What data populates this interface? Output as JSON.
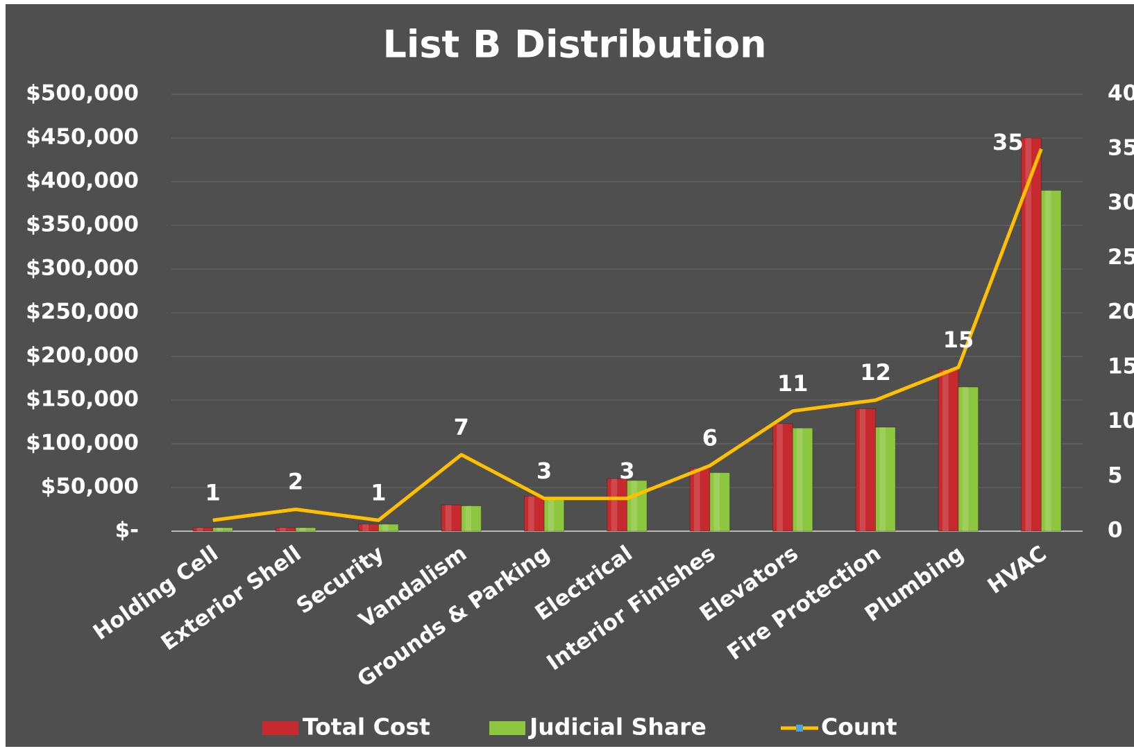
{
  "chart_data": {
    "type": "bar_line",
    "title": "List B Distribution",
    "categories": [
      "Holding Cell",
      "Exterior Shell",
      "Security",
      "Vandalism",
      "Grounds & Parking",
      "Electrical",
      "Interior Finishes",
      "Elevators",
      "Fire Protection",
      "Plumbing",
      "HVAC"
    ],
    "series": [
      {
        "name": "Total Cost",
        "color": "#c62a2e",
        "values": [
          4000,
          4000,
          8000,
          30000,
          40000,
          60000,
          72000,
          123000,
          140000,
          185000,
          450000
        ]
      },
      {
        "name": "Judicial Share",
        "color": "#8dc63f",
        "values": [
          4000,
          4000,
          8000,
          29000,
          38000,
          58000,
          67000,
          118000,
          119000,
          165000,
          390000
        ]
      },
      {
        "name": "Count",
        "color": "#ffc000",
        "axis": "y2",
        "values": [
          1,
          2,
          1,
          7,
          3,
          3,
          6,
          11,
          12,
          15,
          35
        ]
      }
    ],
    "ylim": [
      0,
      500000
    ],
    "yticks": [
      {
        "value": 0,
        "label": "$-"
      },
      {
        "value": 50000,
        "label": "$50,000"
      },
      {
        "value": 100000,
        "label": "$100,000"
      },
      {
        "value": 150000,
        "label": "$150,000"
      },
      {
        "value": 200000,
        "label": "$200,000"
      },
      {
        "value": 250000,
        "label": "$250,000"
      },
      {
        "value": 300000,
        "label": "$300,000"
      },
      {
        "value": 350000,
        "label": "$350,000"
      },
      {
        "value": 400000,
        "label": "$400,000"
      },
      {
        "value": 450000,
        "label": "$450,000"
      },
      {
        "value": 500000,
        "label": "$500,000"
      }
    ],
    "y2lim": [
      0,
      40
    ],
    "y2ticks": [
      0,
      5,
      10,
      15,
      20,
      25,
      30,
      35,
      40
    ],
    "grid": true,
    "legend": "bottom"
  }
}
